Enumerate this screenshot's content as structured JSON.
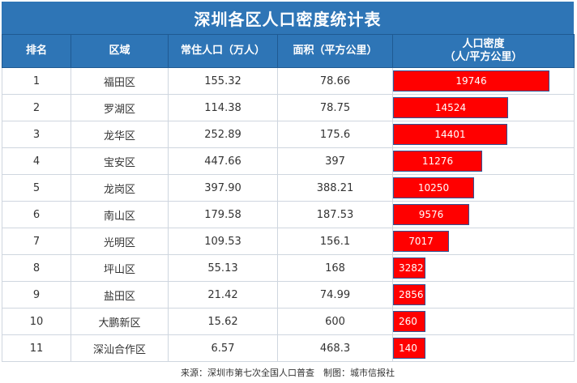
{
  "title": "深圳各区人口密度统计表",
  "headers": {
    "rank": "排名",
    "district": "区域",
    "population": "常住人口（万人）",
    "area": "面积（平方公里）",
    "density_line1": "人口密度",
    "density_line2": "（人/平方公里）"
  },
  "bar_color": "#ff0000",
  "header_color": "#2e75b6",
  "footer": "来源：深圳市第七次全国人口普查　制图：城市信报社",
  "chart_data": {
    "type": "table",
    "columns": [
      "排名",
      "区域",
      "常住人口（万人）",
      "面积（平方公里）",
      "人口密度（人/平方公里）"
    ],
    "rows": [
      {
        "rank": "1",
        "district": "福田区",
        "population": "155.32",
        "area": "78.66",
        "density": 19746
      },
      {
        "rank": "2",
        "district": "罗湖区",
        "population": "114.38",
        "area": "78.75",
        "density": 14524
      },
      {
        "rank": "3",
        "district": "龙华区",
        "population": "252.89",
        "area": "175.6",
        "density": 14401
      },
      {
        "rank": "4",
        "district": "宝安区",
        "population": "447.66",
        "area": "397",
        "density": 11276
      },
      {
        "rank": "5",
        "district": "龙岗区",
        "population": "397.90",
        "area": "388.21",
        "density": 10250
      },
      {
        "rank": "6",
        "district": "南山区",
        "population": "179.58",
        "area": "187.53",
        "density": 9576
      },
      {
        "rank": "7",
        "district": "光明区",
        "population": "109.53",
        "area": "156.1",
        "density": 7017
      },
      {
        "rank": "8",
        "district": "坪山区",
        "population": "55.13",
        "area": "168",
        "density": 3282
      },
      {
        "rank": "9",
        "district": "盐田区",
        "population": "21.42",
        "area": "74.99",
        "density": 2856
      },
      {
        "rank": "10",
        "district": "大鹏新区",
        "population": "15.62",
        "area": "600",
        "density": 260
      },
      {
        "rank": "11",
        "district": "深汕合作区",
        "population": "6.57",
        "area": "468.3",
        "density": 140
      }
    ]
  }
}
